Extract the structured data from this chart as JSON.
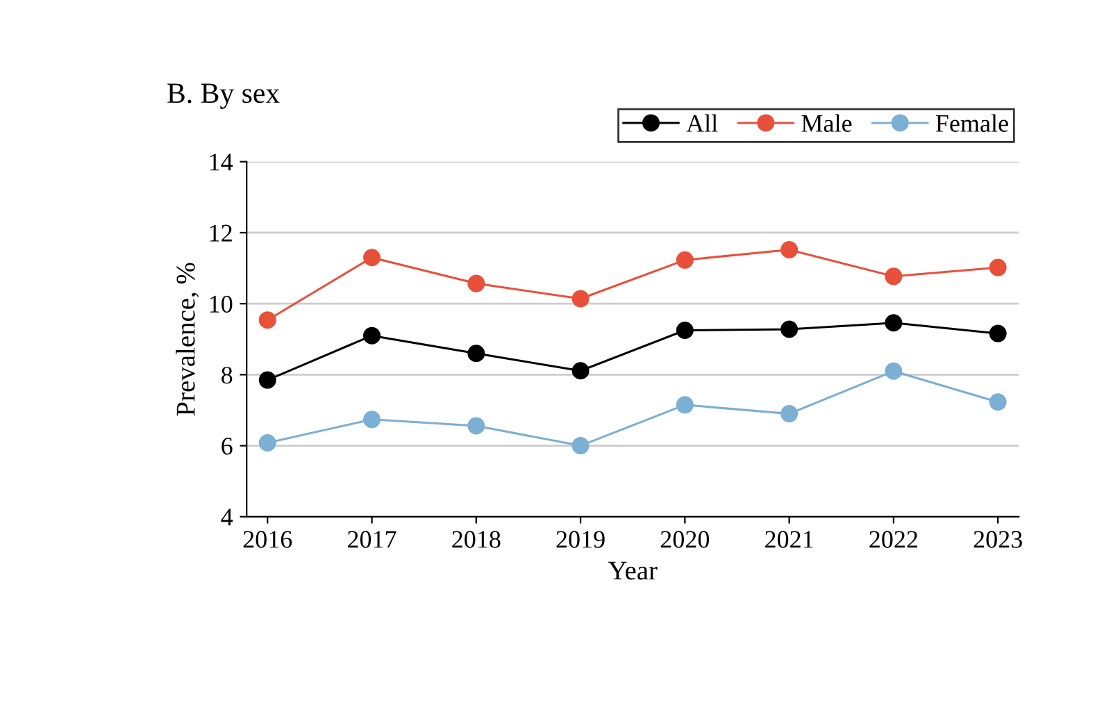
{
  "chart_data": {
    "type": "line",
    "title": "B. By sex",
    "xlabel": "Year",
    "ylabel": "Prevalence, %",
    "categories": [
      "2016",
      "2017",
      "2018",
      "2019",
      "2020",
      "2021",
      "2022",
      "2023"
    ],
    "series": [
      {
        "name": "All",
        "color": "#000000",
        "values": [
          7.85,
          9.1,
          8.6,
          8.11,
          9.25,
          9.28,
          9.46,
          9.16
        ]
      },
      {
        "name": "Male",
        "color": "#e8503a",
        "values": [
          9.54,
          11.3,
          10.57,
          10.14,
          11.23,
          11.52,
          10.77,
          11.02
        ]
      },
      {
        "name": "Female",
        "color": "#7bafd4",
        "values": [
          6.08,
          6.74,
          6.56,
          6.0,
          7.15,
          6.9,
          8.1,
          7.23
        ]
      }
    ],
    "ylim": [
      4,
      14
    ],
    "yticks": [
      4,
      6,
      8,
      10,
      12,
      14
    ],
    "grid": "y",
    "legend": "top right",
    "marker": "circle",
    "line_style": "solid"
  }
}
